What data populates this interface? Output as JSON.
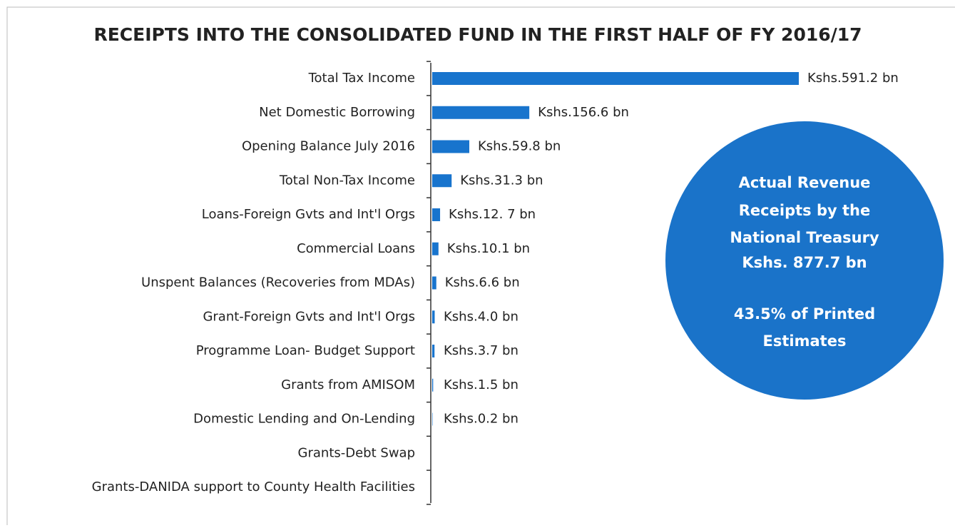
{
  "chart_data": {
    "type": "bar",
    "orientation": "horizontal",
    "title": "RECEIPTS INTO THE CONSOLIDATED FUND IN THE FIRST HALF OF FY 2016/17",
    "categories": [
      "Total Tax Income",
      "Net Domestic Borrowing",
      "Opening Balance July 2016",
      "Total Non-Tax Income",
      "Loans-Foreign Gvts and Int'l Orgs",
      "Commercial Loans",
      "Unspent Balances (Recoveries from MDAs)",
      "Grant-Foreign Gvts and Int'l Orgs",
      "Programme Loan- Budget Support",
      "Grants from AMISOM",
      "Domestic Lending and On-Lending",
      "Grants-Debt Swap",
      "Grants-DANIDA support to County Health Facilities"
    ],
    "values": [
      591.2,
      156.6,
      59.8,
      31.3,
      12.7,
      10.1,
      6.6,
      4.0,
      3.7,
      1.5,
      0.2,
      null,
      null
    ],
    "value_labels": [
      "Kshs.591.2 bn",
      "Kshs.156.6 bn",
      "Kshs.59.8 bn",
      "Kshs.31.3 bn",
      "Kshs.12. 7 bn",
      "Kshs.10.1 bn",
      "Kshs.6.6 bn",
      "Kshs.4.0 bn",
      "Kshs.3.7 bn",
      "Kshs.1.5 bn",
      "Kshs.0.2 bn",
      null,
      null
    ],
    "color": "#1874cd",
    "annotation": {
      "color": "#1a73c9",
      "lines": [
        "Actual Revenue",
        "Receipts by the",
        "National Treasury",
        "Kshs. 877.7 bn",
        "43.5% of Printed",
        "Estimates"
      ]
    }
  }
}
